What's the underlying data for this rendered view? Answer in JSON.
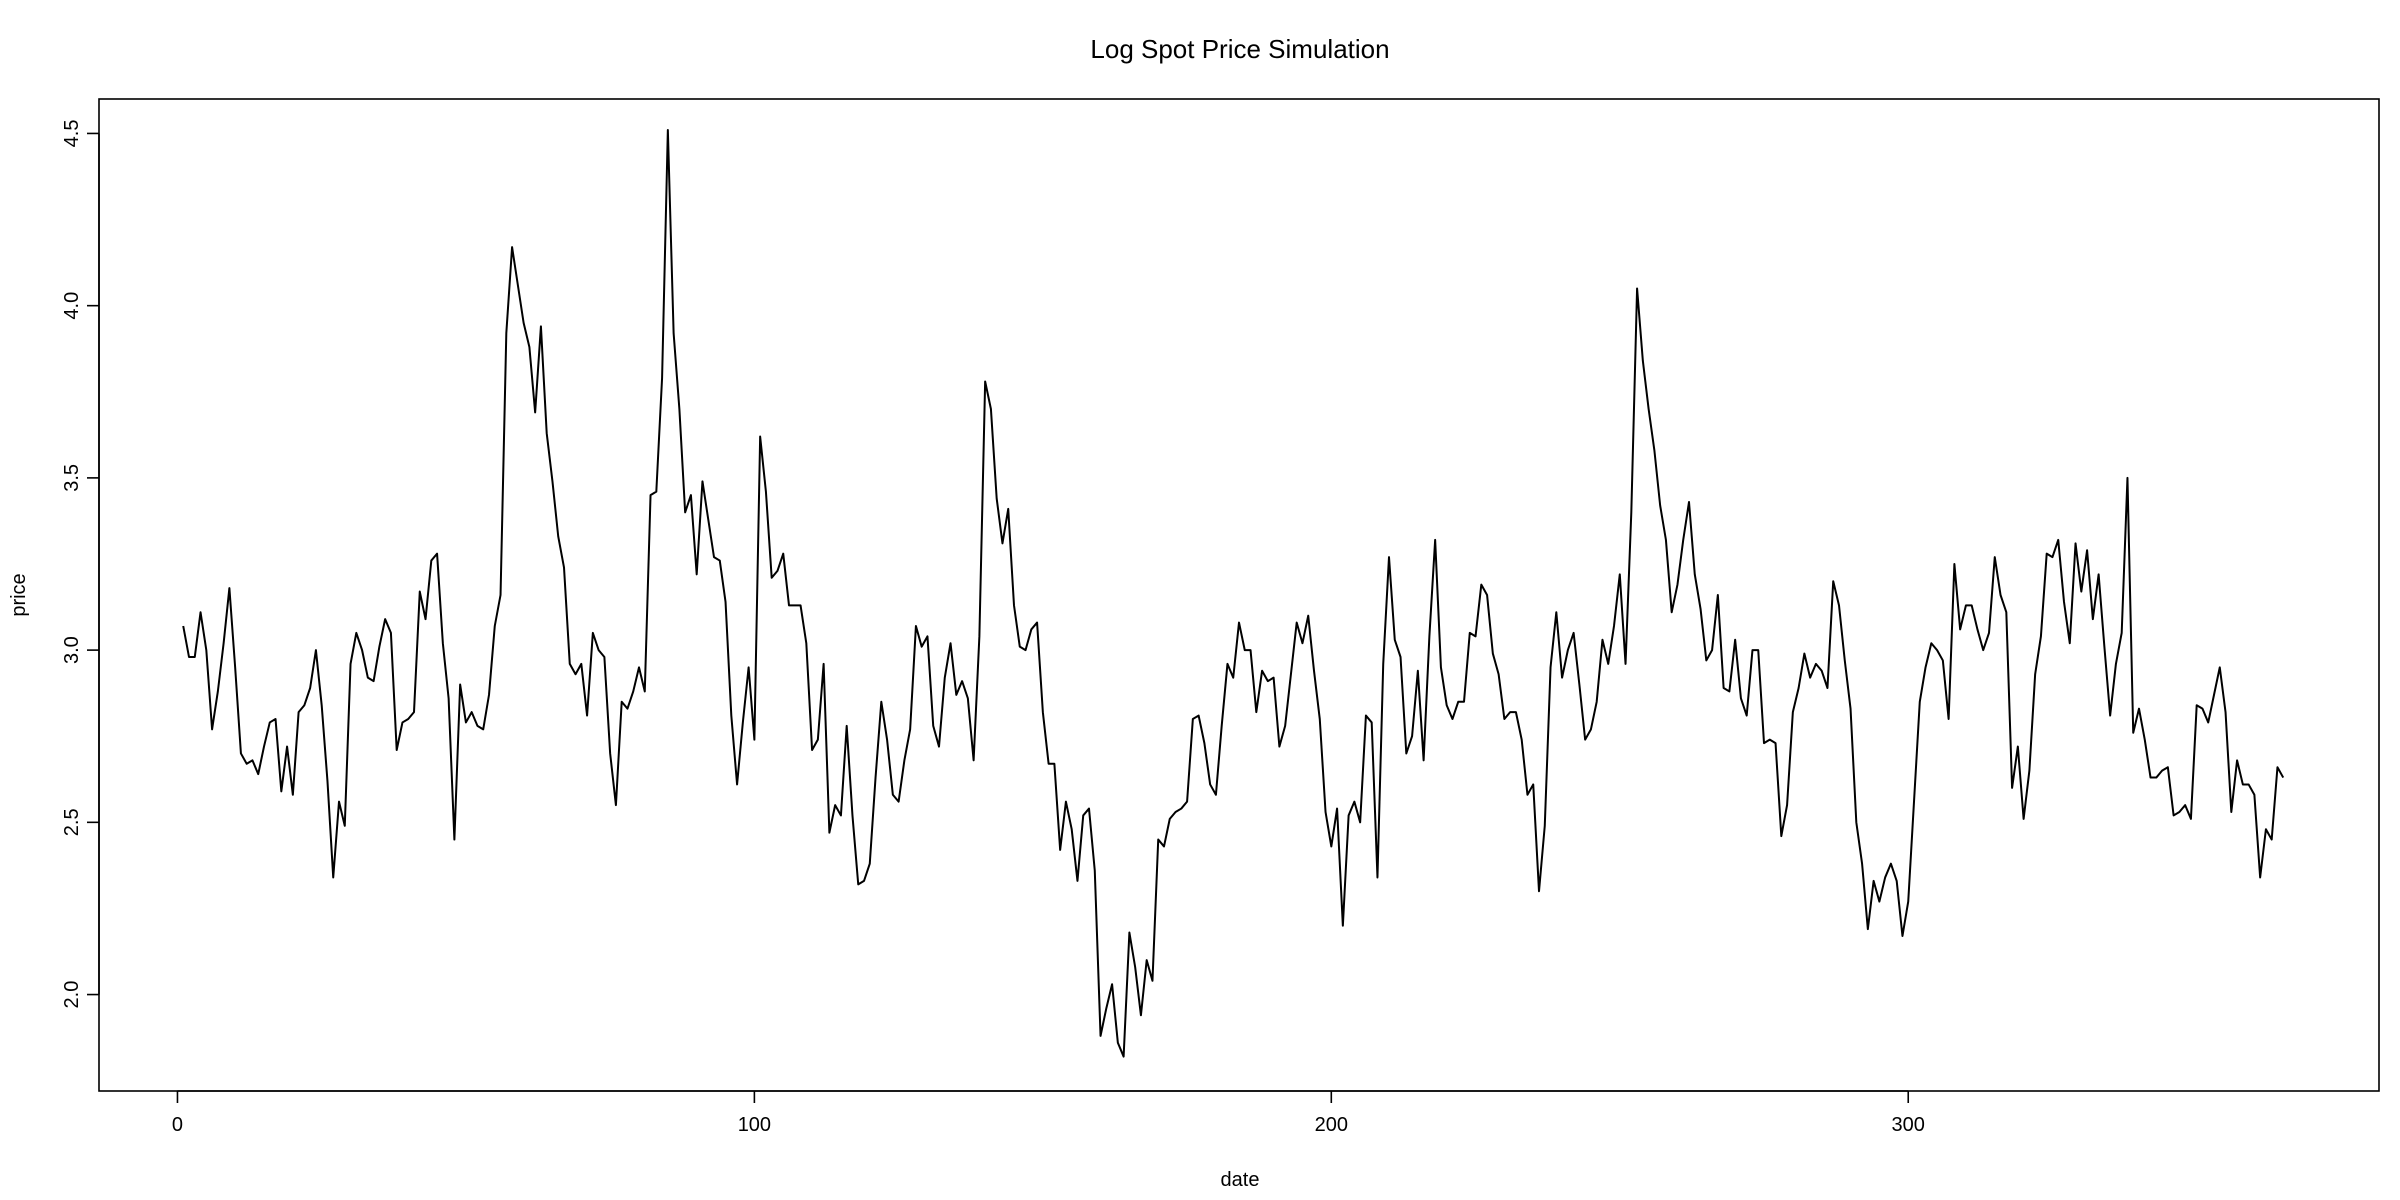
{
  "chart_data": {
    "type": "line",
    "title": "Log Spot Price Simulation",
    "xlabel": "date",
    "ylabel": "price",
    "xlim": [
      -13.6,
      381.6
    ],
    "ylim": [
      1.72,
      4.6
    ],
    "xticks": [
      0,
      100,
      200,
      300
    ],
    "yticks": [
      2.0,
      2.5,
      3.0,
      3.5,
      4.0,
      4.5
    ],
    "grid": false,
    "legend": "none",
    "x_start": 1,
    "series": [
      {
        "values": [
          3.07,
          2.98,
          2.98,
          3.11,
          3.0,
          2.77,
          2.88,
          3.02,
          3.18,
          2.95,
          2.7,
          2.67,
          2.68,
          2.64,
          2.72,
          2.79,
          2.8,
          2.59,
          2.72,
          2.58,
          2.82,
          2.84,
          2.89,
          3.0,
          2.84,
          2.62,
          2.34,
          2.56,
          2.49,
          2.96,
          3.05,
          3.0,
          2.92,
          2.91,
          3.01,
          3.09,
          3.05,
          2.71,
          2.79,
          2.8,
          2.82,
          3.17,
          3.09,
          3.26,
          3.28,
          3.02,
          2.86,
          2.45,
          2.9,
          2.79,
          2.82,
          2.78,
          2.77,
          2.87,
          3.07,
          3.16,
          3.92,
          4.17,
          4.06,
          3.95,
          3.88,
          3.69,
          3.94,
          3.63,
          3.49,
          3.33,
          3.24,
          2.96,
          2.93,
          2.96,
          2.81,
          3.05,
          3.0,
          2.98,
          2.7,
          2.55,
          2.85,
          2.83,
          2.88,
          2.95,
          2.88,
          3.45,
          3.46,
          3.79,
          4.51,
          3.92,
          3.7,
          3.4,
          3.45,
          3.22,
          3.49,
          3.38,
          3.27,
          3.26,
          3.14,
          2.81,
          2.61,
          2.79,
          2.95,
          2.74,
          3.62,
          3.46,
          3.21,
          3.23,
          3.28,
          3.13,
          3.13,
          3.13,
          3.02,
          2.71,
          2.74,
          2.96,
          2.47,
          2.55,
          2.52,
          2.78,
          2.52,
          2.32,
          2.33,
          2.38,
          2.63,
          2.85,
          2.74,
          2.58,
          2.56,
          2.68,
          2.77,
          3.07,
          3.01,
          3.04,
          2.78,
          2.72,
          2.92,
          3.02,
          2.87,
          2.91,
          2.86,
          2.68,
          3.04,
          3.78,
          3.7,
          3.44,
          3.31,
          3.41,
          3.13,
          3.01,
          3.0,
          3.06,
          3.08,
          2.82,
          2.67,
          2.67,
          2.42,
          2.56,
          2.48,
          2.33,
          2.52,
          2.54,
          2.36,
          1.88,
          1.96,
          2.03,
          1.86,
          1.82,
          2.18,
          2.08,
          1.94,
          2.1,
          2.04,
          2.45,
          2.43,
          2.51,
          2.53,
          2.54,
          2.56,
          2.8,
          2.81,
          2.73,
          2.61,
          2.58,
          2.78,
          2.96,
          2.92,
          3.08,
          3.0,
          3.0,
          2.82,
          2.94,
          2.91,
          2.92,
          2.72,
          2.78,
          2.93,
          3.08,
          3.02,
          3.1,
          2.94,
          2.8,
          2.53,
          2.43,
          2.54,
          2.2,
          2.52,
          2.56,
          2.5,
          2.81,
          2.79,
          2.34,
          2.96,
          3.27,
          3.03,
          2.98,
          2.7,
          2.75,
          2.94,
          2.68,
          3.04,
          3.32,
          2.95,
          2.84,
          2.8,
          2.85,
          2.85,
          3.05,
          3.04,
          3.19,
          3.16,
          2.99,
          2.93,
          2.8,
          2.82,
          2.82,
          2.74,
          2.58,
          2.61,
          2.3,
          2.49,
          2.95,
          3.11,
          2.92,
          3.0,
          3.05,
          2.9,
          2.74,
          2.77,
          2.85,
          3.03,
          2.96,
          3.07,
          3.22,
          2.96,
          3.4,
          4.05,
          3.84,
          3.7,
          3.58,
          3.42,
          3.32,
          3.11,
          3.19,
          3.32,
          3.43,
          3.22,
          3.12,
          2.97,
          3.0,
          3.16,
          2.89,
          2.88,
          3.03,
          2.86,
          2.81,
          3.0,
          3.0,
          2.73,
          2.74,
          2.73,
          2.46,
          2.55,
          2.82,
          2.89,
          2.99,
          2.92,
          2.96,
          2.94,
          2.89,
          3.2,
          3.13,
          2.97,
          2.83,
          2.5,
          2.38,
          2.19,
          2.33,
          2.27,
          2.34,
          2.38,
          2.33,
          2.17,
          2.27,
          2.56,
          2.85,
          2.95,
          3.02,
          3.0,
          2.97,
          2.8,
          3.25,
          3.06,
          3.13,
          3.13,
          3.06,
          3.0,
          3.05,
          3.27,
          3.16,
          3.11,
          2.6,
          2.72,
          2.51,
          2.65,
          2.93,
          3.04,
          3.28,
          3.27,
          3.32,
          3.14,
          3.02,
          3.31,
          3.17,
          3.29,
          3.09,
          3.22,
          3.01,
          2.81,
          2.96,
          3.05,
          3.5,
          2.76,
          2.83,
          2.74,
          2.63,
          2.63,
          2.65,
          2.66,
          2.52,
          2.53,
          2.55,
          2.51,
          2.84,
          2.83,
          2.79,
          2.87,
          2.95,
          2.82,
          2.53,
          2.68,
          2.61,
          2.61,
          2.58,
          2.34,
          2.48,
          2.45,
          2.66,
          2.63
        ]
      }
    ]
  }
}
